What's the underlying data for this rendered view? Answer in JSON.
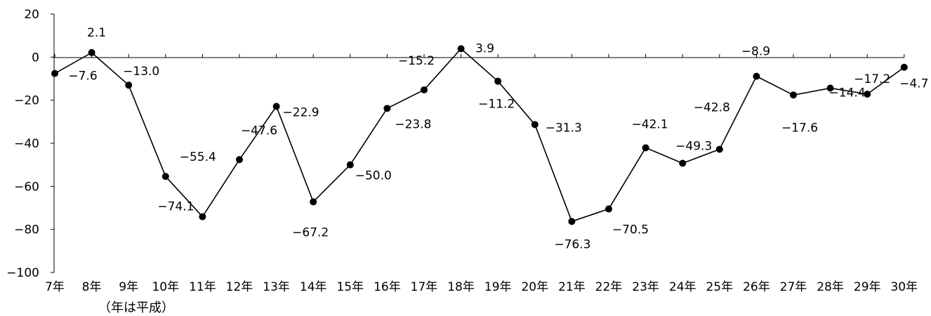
{
  "chart_data": {
    "type": "line",
    "categories": [
      "7年",
      "8年",
      "9年",
      "10年",
      "11年",
      "12年",
      "13年",
      "14年",
      "15年",
      "16年",
      "17年",
      "18年",
      "19年",
      "20年",
      "21年",
      "22年",
      "23年",
      "24年",
      "25年",
      "26年",
      "27年",
      "28年",
      "29年",
      "30年"
    ],
    "values": [
      -7.6,
      2.1,
      -13.0,
      -55.4,
      -74.1,
      -47.6,
      -22.9,
      -67.2,
      -50.0,
      -23.8,
      -15.2,
      3.9,
      -11.2,
      -31.3,
      -76.3,
      -70.5,
      -42.1,
      -49.3,
      -42.8,
      -8.9,
      -17.6,
      -14.4,
      -17.2,
      -4.7
    ],
    "value_labels": [
      "-7.6",
      "2.1",
      "-13.0",
      "-55.4",
      "-74.1",
      "-47.6",
      "-22.9",
      "-67.2",
      "-50.0",
      "-23.8",
      "-15.2",
      "3.9",
      "-11.2",
      "-31.3",
      "-76.3",
      "-70.5",
      "-42.1",
      "-49.3",
      "-42.8",
      "-8.9",
      "-17.6",
      "-14.4",
      "-17.2",
      "-4.7"
    ],
    "ylim": [
      -100,
      20
    ],
    "yticks": [
      "20",
      "0",
      "-20",
      "-40",
      "-60",
      "-80",
      "-100"
    ],
    "x_note": "（年は平成）",
    "grid": false,
    "legend": "none",
    "line_color": "#000000",
    "marker": "filled-circle"
  }
}
